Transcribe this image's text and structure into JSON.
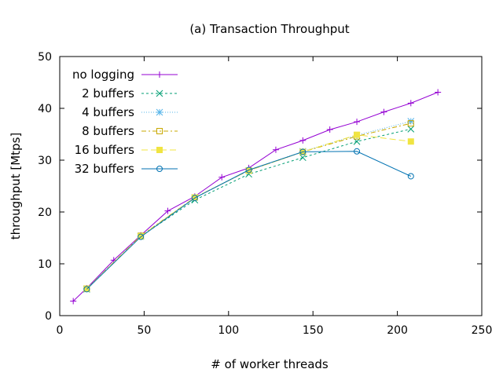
{
  "chart_data": {
    "type": "line",
    "title": "(a) Transaction Throughput",
    "xlabel": "# of worker threads",
    "ylabel": "throughput [Mtps]",
    "xlim": [
      0,
      250
    ],
    "ylim": [
      0,
      50
    ],
    "xticks": [
      0,
      50,
      100,
      150,
      200,
      250
    ],
    "yticks": [
      0,
      10,
      20,
      30,
      40,
      50
    ],
    "grid": false,
    "legend_position": "top-left",
    "series": [
      {
        "name": "no logging",
        "color": "#9400d3",
        "marker": "plus",
        "dash": "solid",
        "points": [
          [
            8,
            2.8
          ],
          [
            16,
            5.3
          ],
          [
            32,
            10.7
          ],
          [
            48,
            15.5
          ],
          [
            64,
            20.2
          ],
          [
            80,
            23.0
          ],
          [
            96,
            26.7
          ],
          [
            112,
            28.5
          ],
          [
            128,
            32.0
          ],
          [
            144,
            33.8
          ],
          [
            160,
            35.9
          ],
          [
            176,
            37.4
          ],
          [
            192,
            39.3
          ],
          [
            208,
            41.0
          ],
          [
            224,
            43.1
          ]
        ]
      },
      {
        "name": "2 buffers",
        "color": "#009e73",
        "marker": "cross",
        "dash": "dotted",
        "points": [
          [
            16,
            5.1
          ],
          [
            48,
            15.3
          ],
          [
            80,
            22.3
          ],
          [
            112,
            27.3
          ],
          [
            144,
            30.5
          ],
          [
            176,
            33.6
          ],
          [
            208,
            36.0
          ]
        ]
      },
      {
        "name": "4 buffers",
        "color": "#56b4e9",
        "marker": "star",
        "dash": "dotted-fine",
        "points": [
          [
            16,
            5.2
          ],
          [
            48,
            15.3
          ],
          [
            80,
            22.8
          ],
          [
            112,
            28.0
          ],
          [
            144,
            31.7
          ],
          [
            176,
            34.8
          ],
          [
            208,
            37.5
          ]
        ]
      },
      {
        "name": "8 buffers",
        "color": "#c8a800",
        "marker": "open-square",
        "dash": "dash-dot",
        "points": [
          [
            16,
            5.2
          ],
          [
            48,
            15.4
          ],
          [
            80,
            22.8
          ],
          [
            112,
            28.0
          ],
          [
            144,
            31.6
          ],
          [
            176,
            34.6
          ],
          [
            208,
            37.1
          ]
        ]
      },
      {
        "name": "16 buffers",
        "color": "#f0e442",
        "marker": "filled-square",
        "dash": "dashed",
        "points": [
          [
            16,
            5.2
          ],
          [
            48,
            15.3
          ],
          [
            80,
            22.8
          ],
          [
            112,
            28.0
          ],
          [
            144,
            31.6
          ],
          [
            176,
            34.9
          ],
          [
            208,
            33.6
          ]
        ]
      },
      {
        "name": "32 buffers",
        "color": "#0072b2",
        "marker": "open-circle",
        "dash": "solid",
        "points": [
          [
            16,
            5.1
          ],
          [
            48,
            15.2
          ],
          [
            80,
            22.7
          ],
          [
            112,
            28.1
          ],
          [
            144,
            31.6
          ],
          [
            176,
            31.7
          ],
          [
            208,
            26.9
          ]
        ]
      }
    ]
  }
}
